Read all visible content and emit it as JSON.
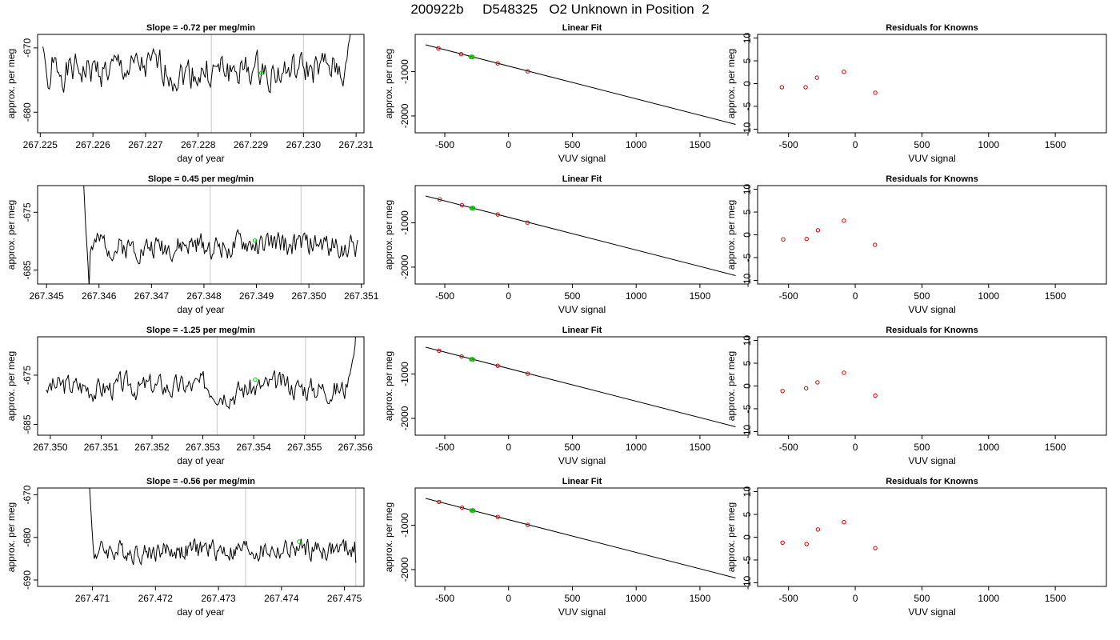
{
  "figure": {
    "title": "200922b     D548325   O2 Unknown in Position  2"
  },
  "chart_data": [
    {
      "type": "line",
      "row": 1,
      "title": "Slope =  -0.72  per meg/min",
      "xlabel": "day of year",
      "ylabel": "approx. per meg",
      "xlim": [
        267.22495,
        267.23115
      ],
      "ylim": [
        -683.2,
        -667.9
      ],
      "xticks": [
        267.225,
        267.226,
        267.227,
        267.228,
        267.229,
        267.23,
        267.231
      ],
      "xtick_labels": [
        "267.225",
        "267.226",
        "267.227",
        "267.228",
        "267.229",
        "267.230",
        "267.231"
      ],
      "yticks": [
        -670,
        -680
      ],
      "ytick_labels": [
        "-670",
        "-680"
      ],
      "vlines": [
        267.22825,
        267.23
      ],
      "marker": {
        "x": 267.2292,
        "y": -673.9,
        "color": "#00cc00"
      },
      "series": [
        {
          "x_start": 267.22505,
          "x_end": 267.23095,
          "base": -673.6,
          "amp": 2.0,
          "seed": 1,
          "start": [
            -669.8,
            -670.8,
            -672.4,
            -674.4,
            -676.2,
            -676.4,
            -675.4
          ],
          "end": [
            -674.2,
            -672.4,
            -671.8,
            -669.6,
            -668.6,
            -667.1,
            -664.8,
            -661.0
          ]
        }
      ]
    },
    {
      "type": "scatter",
      "row": 1,
      "title": "Linear Fit",
      "xlabel": "VUV signal",
      "ylabel": "approx. per meg",
      "xlim": [
        -732,
        1883
      ],
      "ylim": [
        -2380,
        -160
      ],
      "xticks": [
        -500,
        0,
        500,
        1000,
        1500
      ],
      "xtick_labels": [
        "-500",
        "0",
        "500",
        "1000",
        "1500"
      ],
      "yticks": [
        -1000,
        -2000
      ],
      "ytick_labels": [
        "-1000",
        "-2000"
      ],
      "fit_line": {
        "x": [
          -650,
          1780
        ],
        "y": [
          -395,
          -2190
        ]
      },
      "points": [
        {
          "x": -550,
          "y": -475,
          "color": "#d40000"
        },
        {
          "x": -372,
          "y": -605,
          "color": "#d40000"
        },
        {
          "x": -287,
          "y": -664,
          "color": "#d40000"
        },
        {
          "x": -85,
          "y": -814,
          "color": "#d40000"
        },
        {
          "x": 150,
          "y": -992,
          "color": "#d40000"
        }
      ],
      "unknown_points": [
        {
          "x": -298,
          "y": -667,
          "color": "#00cc00"
        },
        {
          "x": -290,
          "y": -669,
          "color": "#00cc00"
        },
        {
          "x": -282,
          "y": -672,
          "color": "#00cc00"
        }
      ]
    },
    {
      "type": "scatter",
      "row": 1,
      "title": "Residuals for Knowns",
      "xlabel": "VUV signal",
      "ylabel": "approx. per meg",
      "xlim": [
        -732,
        1883
      ],
      "ylim": [
        -10.8,
        10.8
      ],
      "xticks": [
        -500,
        0,
        500,
        1000,
        1500
      ],
      "xtick_labels": [
        "-500",
        "0",
        "500",
        "1000",
        "1500"
      ],
      "yticks": [
        10,
        5,
        0,
        -5,
        -10
      ],
      "ytick_labels": [
        "10",
        "5",
        "0",
        "-5",
        "-10"
      ],
      "points": [
        {
          "x": -550,
          "y": -0.8,
          "color": "#d40000"
        },
        {
          "x": -372,
          "y": -0.8,
          "color": "#d40000"
        },
        {
          "x": -287,
          "y": 1.3,
          "color": "#d40000"
        },
        {
          "x": -85,
          "y": 2.6,
          "color": "#d40000"
        },
        {
          "x": 150,
          "y": -2.0,
          "color": "#d40000"
        }
      ]
    },
    {
      "type": "line",
      "row": 2,
      "title": "Slope =  0.45  per meg/min",
      "xlabel": "day of year",
      "ylabel": "approx. per meg",
      "xlim": [
        267.34483,
        267.35105
      ],
      "ylim": [
        -687.4,
        -670.4
      ],
      "xticks": [
        267.345,
        267.346,
        267.347,
        267.348,
        267.349,
        267.35,
        267.351
      ],
      "xtick_labels": [
        "267.345",
        "267.346",
        "267.347",
        "267.348",
        "267.349",
        "267.350",
        "267.351"
      ],
      "yticks": [
        -675,
        -685
      ],
      "ytick_labels": [
        "-675",
        "-685"
      ],
      "vlines": [
        267.34812,
        267.34985
      ],
      "marker": {
        "x": 267.34897,
        "y": -679.9,
        "color": "#00cc00"
      },
      "series": [
        {
          "x_start": 267.34568,
          "x_end": 267.35093,
          "base": -680.8,
          "amp": 1.6,
          "seed": 2,
          "start": [
            -666.0,
            -669.0,
            -673.0,
            -677.5,
            -680.5,
            -684.0,
            -688.0,
            -682.0
          ],
          "end": [
            -679.8
          ]
        }
      ]
    },
    {
      "type": "scatter",
      "row": 2,
      "title": "Linear Fit",
      "xlabel": "VUV signal",
      "ylabel": "approx. per meg",
      "xlim": [
        -732,
        1883
      ],
      "ylim": [
        -2380,
        -160
      ],
      "xticks": [
        -500,
        0,
        500,
        1000,
        1500
      ],
      "xtick_labels": [
        "-500",
        "0",
        "500",
        "1000",
        "1500"
      ],
      "yticks": [
        -1000,
        -2000
      ],
      "ytick_labels": [
        "-1000",
        "-2000"
      ],
      "fit_line": {
        "x": [
          -650,
          1780
        ],
        "y": [
          -395,
          -2190
        ]
      },
      "points": [
        {
          "x": -540,
          "y": -473,
          "color": "#d40000"
        },
        {
          "x": -365,
          "y": -602,
          "color": "#d40000"
        },
        {
          "x": -280,
          "y": -662,
          "color": "#d40000"
        },
        {
          "x": -85,
          "y": -812,
          "color": "#d40000"
        },
        {
          "x": 148,
          "y": -994,
          "color": "#d40000"
        }
      ],
      "unknown_points": [
        {
          "x": -292,
          "y": -666,
          "color": "#00cc00"
        },
        {
          "x": -284,
          "y": -669,
          "color": "#00cc00"
        },
        {
          "x": -276,
          "y": -672,
          "color": "#00cc00"
        }
      ]
    },
    {
      "type": "scatter",
      "row": 2,
      "title": "Residuals for Knowns",
      "xlabel": "VUV signal",
      "ylabel": "approx. per meg",
      "xlim": [
        -732,
        1883
      ],
      "ylim": [
        -10.8,
        10.8
      ],
      "xticks": [
        -500,
        0,
        500,
        1000,
        1500
      ],
      "xtick_labels": [
        "-500",
        "0",
        "500",
        "1000",
        "1500"
      ],
      "yticks": [
        10,
        5,
        0,
        -5,
        -10
      ],
      "ytick_labels": [
        "10",
        "5",
        "0",
        "-5",
        "-10"
      ],
      "points": [
        {
          "x": -540,
          "y": -1.0,
          "color": "#d40000"
        },
        {
          "x": -365,
          "y": -0.9,
          "color": "#d40000"
        },
        {
          "x": -280,
          "y": 1.0,
          "color": "#d40000"
        },
        {
          "x": -85,
          "y": 3.1,
          "color": "#d40000"
        },
        {
          "x": 148,
          "y": -2.2,
          "color": "#d40000"
        }
      ]
    },
    {
      "type": "line",
      "row": 3,
      "title": "Slope =  -1.25  per meg/min",
      "xlabel": "day of year",
      "ylabel": "approx. per meg",
      "xlim": [
        267.34975,
        267.35617
      ],
      "ylim": [
        -687.2,
        -667.2
      ],
      "xticks": [
        267.35,
        267.351,
        267.352,
        267.353,
        267.354,
        267.355,
        267.356
      ],
      "xtick_labels": [
        "267.350",
        "267.351",
        "267.352",
        "267.353",
        "267.354",
        "267.355",
        "267.356"
      ],
      "yticks": [
        -675,
        -685
      ],
      "ytick_labels": [
        "-675",
        "-685"
      ],
      "vlines": [
        267.35328,
        267.35502
      ],
      "marker": {
        "x": 267.35403,
        "y": -675.9,
        "color": "#00cc00"
      },
      "series": [
        {
          "x_start": 267.34992,
          "x_end": 267.35602,
          "base": -677.4,
          "amp": 1.9,
          "seed": 3,
          "start": [
            -678.0,
            -678.5
          ],
          "end": [
            -677.5,
            -675.5,
            -674.8,
            -673.5,
            -672.0,
            -671.0,
            -669.0,
            -664.0
          ]
        }
      ]
    },
    {
      "type": "scatter",
      "row": 3,
      "title": "Linear Fit",
      "xlabel": "VUV signal",
      "ylabel": "approx. per meg",
      "xlim": [
        -732,
        1883
      ],
      "ylim": [
        -2380,
        -160
      ],
      "xticks": [
        -500,
        0,
        500,
        1000,
        1500
      ],
      "xtick_labels": [
        "-500",
        "0",
        "500",
        "1000",
        "1500"
      ],
      "yticks": [
        -1000,
        -2000
      ],
      "ytick_labels": [
        "-1000",
        "-2000"
      ],
      "fit_line": {
        "x": [
          -650,
          1780
        ],
        "y": [
          -395,
          -2190
        ]
      },
      "points": [
        {
          "x": -545,
          "y": -474,
          "color": "#d40000"
        },
        {
          "x": -368,
          "y": -604,
          "color": "#d40000"
        },
        {
          "x": -283,
          "y": -664,
          "color": "#d40000"
        },
        {
          "x": -85,
          "y": -813,
          "color": "#d40000"
        },
        {
          "x": 150,
          "y": -992,
          "color": "#d40000"
        }
      ],
      "unknown_points": [
        {
          "x": -294,
          "y": -667,
          "color": "#00cc00"
        },
        {
          "x": -286,
          "y": -669,
          "color": "#00cc00"
        },
        {
          "x": -278,
          "y": -672,
          "color": "#00cc00"
        }
      ]
    },
    {
      "type": "scatter",
      "row": 3,
      "title": "Residuals for Knowns",
      "xlabel": "VUV signal",
      "ylabel": "approx. per meg",
      "xlim": [
        -732,
        1883
      ],
      "ylim": [
        -10.8,
        10.8
      ],
      "xticks": [
        -500,
        0,
        500,
        1000,
        1500
      ],
      "xtick_labels": [
        "-500",
        "0",
        "500",
        "1000",
        "1500"
      ],
      "yticks": [
        10,
        5,
        0,
        -5,
        -10
      ],
      "ytick_labels": [
        "10",
        "5",
        "0",
        "-5",
        "-10"
      ],
      "points": [
        {
          "x": -545,
          "y": -1.1,
          "color": "#d40000"
        },
        {
          "x": -368,
          "y": -0.5,
          "color": "#d40000"
        },
        {
          "x": -283,
          "y": 0.8,
          "color": "#d40000"
        },
        {
          "x": -85,
          "y": 2.9,
          "color": "#d40000"
        },
        {
          "x": 150,
          "y": -2.1,
          "color": "#d40000"
        }
      ]
    },
    {
      "type": "line",
      "row": 4,
      "title": "Slope =  -0.56  per meg/min",
      "xlabel": "day of year",
      "ylabel": "approx. per meg",
      "xlim": [
        267.47013,
        267.47531
      ],
      "ylim": [
        -691.5,
        -668.4
      ],
      "xticks": [
        267.471,
        267.472,
        267.473,
        267.474,
        267.475
      ],
      "xtick_labels": [
        "267.471",
        "267.472",
        "267.473",
        "267.474",
        "267.475"
      ],
      "yticks": [
        -670,
        -680,
        -690
      ],
      "ytick_labels": [
        "-670",
        "-680",
        "-690"
      ],
      "vlines": [
        267.47343,
        267.47518
      ],
      "marker": {
        "x": 267.47428,
        "y": -681.0,
        "color": "#00cc00"
      },
      "series": [
        {
          "x_start": 267.47094,
          "x_end": 267.47518,
          "base": -683.0,
          "amp": 1.9,
          "seed": 4,
          "start": [
            -665.0,
            -669.0,
            -673.5,
            -678.0,
            -682.0,
            -685.0
          ],
          "end": [
            -683.5,
            -681.0,
            -686.0
          ]
        }
      ]
    },
    {
      "type": "scatter",
      "row": 4,
      "title": "Linear Fit",
      "xlabel": "VUV signal",
      "ylabel": "approx. per meg",
      "xlim": [
        -732,
        1883
      ],
      "ylim": [
        -2380,
        -160
      ],
      "xticks": [
        -500,
        0,
        500,
        1000,
        1500
      ],
      "xtick_labels": [
        "-500",
        "0",
        "500",
        "1000",
        "1500"
      ],
      "yticks": [
        -1000,
        -2000
      ],
      "ytick_labels": [
        "-1000",
        "-2000"
      ],
      "fit_line": {
        "x": [
          -650,
          1780
        ],
        "y": [
          -395,
          -2190
        ]
      },
      "points": [
        {
          "x": -545,
          "y": -474,
          "color": "#d40000"
        },
        {
          "x": -365,
          "y": -604,
          "color": "#d40000"
        },
        {
          "x": -280,
          "y": -663,
          "color": "#d40000"
        },
        {
          "x": -85,
          "y": -813,
          "color": "#d40000"
        },
        {
          "x": 150,
          "y": -992,
          "color": "#d40000"
        }
      ],
      "unknown_points": [
        {
          "x": -292,
          "y": -666,
          "color": "#00cc00"
        },
        {
          "x": -284,
          "y": -669,
          "color": "#00cc00"
        },
        {
          "x": -276,
          "y": -672,
          "color": "#00cc00"
        }
      ]
    },
    {
      "type": "scatter",
      "row": 4,
      "title": "Residuals for Knowns",
      "xlabel": "VUV signal",
      "ylabel": "approx. per meg",
      "xlim": [
        -732,
        1883
      ],
      "ylim": [
        -10.8,
        10.8
      ],
      "xticks": [
        -500,
        0,
        500,
        1000,
        1500
      ],
      "xtick_labels": [
        "-500",
        "0",
        "500",
        "1000",
        "1500"
      ],
      "yticks": [
        10,
        5,
        0,
        -5,
        -10
      ],
      "ytick_labels": [
        "10",
        "5",
        "0",
        "-5",
        "-10"
      ],
      "points": [
        {
          "x": -545,
          "y": -1.2,
          "color": "#d40000"
        },
        {
          "x": -365,
          "y": -1.5,
          "color": "#d40000"
        },
        {
          "x": -280,
          "y": 1.7,
          "color": "#d40000"
        },
        {
          "x": -85,
          "y": 3.3,
          "color": "#d40000"
        },
        {
          "x": 150,
          "y": -2.4,
          "color": "#d40000"
        }
      ]
    }
  ]
}
